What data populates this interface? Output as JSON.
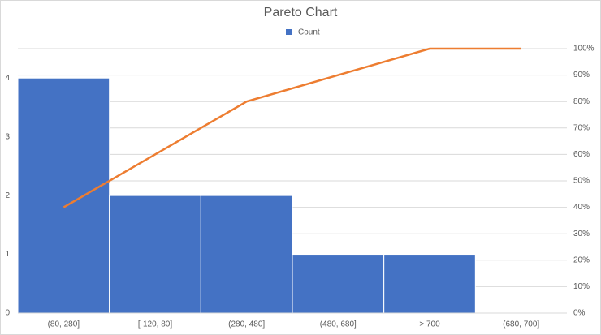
{
  "chart_data": {
    "type": "pareto",
    "title": "Pareto Chart",
    "categories": [
      "(80, 280]",
      "[-120, 80]",
      "(280, 480]",
      "(480, 680]",
      "> 700",
      "(680, 700]"
    ],
    "series": [
      {
        "name": "Count",
        "color": "#4472c4",
        "values": [
          4,
          2,
          2,
          1,
          1,
          0
        ]
      },
      {
        "color": "#ed7d31",
        "values": [
          40,
          60,
          80,
          90,
          100,
          100
        ],
        "axis": "y2"
      }
    ],
    "ylim": [
      0,
      4.5
    ],
    "yticks": [
      0,
      1,
      2,
      3,
      4
    ],
    "y2lim": [
      0,
      100
    ],
    "y2ticks": [
      {
        "value": 0,
        "label": "0%"
      },
      {
        "value": 10,
        "label": "10%"
      },
      {
        "value": 20,
        "label": "20%"
      },
      {
        "value": 30,
        "label": "30%"
      },
      {
        "value": 40,
        "label": "40%"
      },
      {
        "value": 50,
        "label": "50%"
      },
      {
        "value": 60,
        "label": "60%"
      },
      {
        "value": 70,
        "label": "70%"
      },
      {
        "value": 80,
        "label": "80%"
      },
      {
        "value": 90,
        "label": "90%"
      },
      {
        "value": 100,
        "label": "100%"
      }
    ],
    "grid": true
  }
}
